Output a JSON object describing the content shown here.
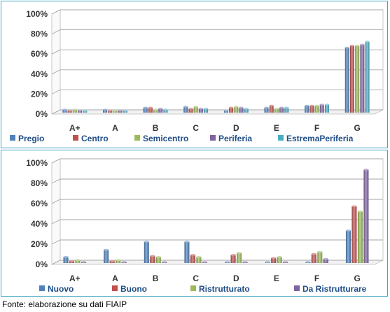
{
  "chart_data": [
    {
      "type": "bar",
      "categories": [
        "A+",
        "A",
        "B",
        "C",
        "D",
        "E",
        "F",
        "G"
      ],
      "series": [
        {
          "name": "Pregio",
          "color": "#4f81bd",
          "values": [
            3,
            3,
            5,
            6,
            2,
            5,
            7,
            65
          ]
        },
        {
          "name": "Centro",
          "color": "#c0504d",
          "values": [
            2,
            2,
            5,
            4,
            5,
            7,
            7,
            67
          ]
        },
        {
          "name": "Semicentro",
          "color": "#9bbb59",
          "values": [
            3,
            2,
            3,
            6,
            6,
            4,
            7,
            67
          ]
        },
        {
          "name": "Periferia",
          "color": "#8064a2",
          "values": [
            2,
            2,
            4,
            4,
            5,
            5,
            8,
            68
          ]
        },
        {
          "name": "EstremaPeriferia",
          "color": "#4bacc6",
          "values": [
            2,
            2,
            3,
            4,
            4,
            5,
            8,
            71
          ]
        }
      ],
      "yticks": [
        "0%",
        "20%",
        "40%",
        "60%",
        "80%",
        "100%"
      ],
      "ylim": [
        0,
        100
      ],
      "legend_position": "bottom",
      "grid": true
    },
    {
      "type": "bar",
      "categories": [
        "A+",
        "A",
        "B",
        "C",
        "D",
        "E",
        "F",
        "G"
      ],
      "series": [
        {
          "name": "Nuovo",
          "color": "#4f81bd",
          "values": [
            6,
            13,
            21,
            21,
            1,
            1,
            1,
            32
          ]
        },
        {
          "name": "Buono",
          "color": "#c0504d",
          "values": [
            2,
            2,
            7,
            8,
            8,
            5,
            9,
            56
          ]
        },
        {
          "name": "Ristrutturato",
          "color": "#9bbb59",
          "values": [
            3,
            3,
            6,
            6,
            10,
            6,
            11,
            51
          ]
        },
        {
          "name": "Da Ristrutturare",
          "color": "#8064a2",
          "values": [
            1,
            1,
            1,
            1,
            1,
            1,
            4,
            92
          ]
        }
      ],
      "yticks": [
        "0%",
        "20%",
        "40%",
        "60%",
        "80%",
        "100%"
      ],
      "ylim": [
        0,
        100
      ],
      "legend_position": "bottom",
      "grid": true
    }
  ],
  "source_note": "Fonte: elaborazione su dati FIAIP"
}
